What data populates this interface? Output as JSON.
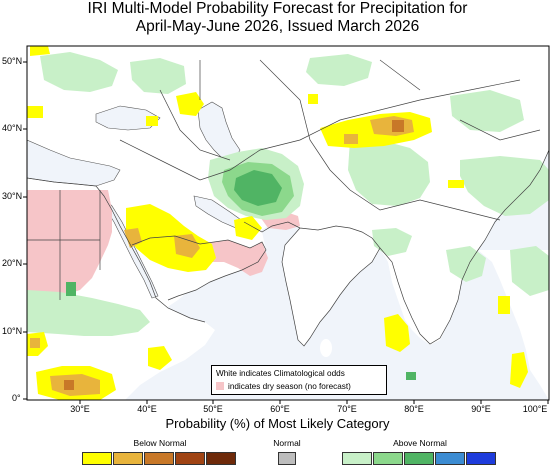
{
  "title": {
    "line1": "IRI Multi-Model Probability Forecast for Precipitation for",
    "line2": "April-May-June 2026, Issued March 2026"
  },
  "map": {
    "lon_range": [
      22,
      100
    ],
    "lat_range": [
      0,
      54
    ],
    "lat_ticks": [
      "50°N",
      "40°N",
      "30°N",
      "20°N",
      "10°N",
      "0°"
    ],
    "lon_ticks": [
      "30°E",
      "40°E",
      "50°E",
      "60°E",
      "70°E",
      "80°E",
      "90°E",
      "100°E"
    ]
  },
  "note": {
    "line1": "White indicates Climatological odds",
    "line2": "indicates dry season (no forecast)"
  },
  "legend": {
    "caption": "Probability (%) of Most Likely Category",
    "below_label": "Below Normal",
    "normal_label": "Normal",
    "above_label": "Above Normal",
    "colors": {
      "below": [
        "#ffff00",
        "#e8b43c",
        "#c87828",
        "#a04414",
        "#6e2a0a"
      ],
      "normal": "#bdbdbd",
      "above": [
        "#c8f0c8",
        "#8cd88c",
        "#50b464",
        "#3c8cd2",
        "#1e3cdc"
      ],
      "dry_season": "#f6c5c8",
      "water": "#f0f4fa"
    }
  }
}
